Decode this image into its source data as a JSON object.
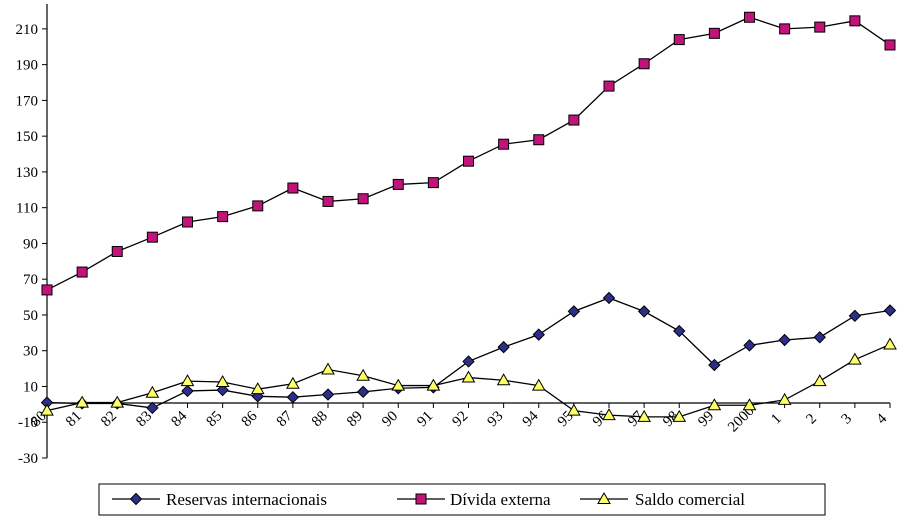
{
  "chart_data": {
    "type": "line",
    "title": "",
    "xlabel": "",
    "ylabel": "",
    "x": [
      "80",
      "81",
      "82",
      "83",
      "84",
      "85",
      "86",
      "87",
      "88",
      "89",
      "90",
      "91",
      "92",
      "93",
      "94",
      "95",
      "96",
      "97",
      "98",
      "99",
      "2000",
      "1",
      "2",
      "3",
      "4"
    ],
    "ylim": [
      -30,
      220
    ],
    "yticks": [
      -30,
      -10,
      10,
      30,
      50,
      70,
      90,
      110,
      130,
      150,
      170,
      190,
      210
    ],
    "yticks_labels": [
      "-30",
      "-10",
      "10",
      "30",
      "50",
      "70",
      "90",
      "110",
      "130",
      "150",
      "170",
      "190",
      "210"
    ],
    "grid": false,
    "legend_position": "bottom",
    "series": [
      {
        "name": "Reservas internacionais",
        "marker": "diamond",
        "color": "#2e2e8a",
        "values": [
          1,
          0.5,
          0.5,
          -2,
          7.5,
          8,
          4.5,
          4,
          5.5,
          7,
          9,
          9.5,
          24,
          32,
          39,
          52,
          59.5,
          52,
          41,
          22,
          33,
          36,
          37.5,
          49.5,
          52.5
        ]
      },
      {
        "name": "Dívida externa",
        "marker": "square",
        "color": "#c0147a",
        "values": [
          64,
          74,
          85.5,
          93.5,
          102,
          105,
          111,
          121,
          113.5,
          115,
          123,
          124,
          136,
          145.5,
          148,
          159,
          178,
          190.5,
          204,
          207.5,
          216.5,
          210,
          211,
          214.5,
          201
        ]
      },
      {
        "name": "Saldo comercial",
        "marker": "triangle",
        "color": "#ffff66",
        "values": [
          -3.5,
          1,
          1,
          6.5,
          13,
          12.5,
          8.5,
          11.5,
          19.5,
          16,
          10.5,
          10.5,
          15,
          13.5,
          10.5,
          -3.5,
          -6,
          -7,
          -7,
          -0.5,
          -0.5,
          2.5,
          13,
          25,
          33.5
        ]
      }
    ]
  }
}
